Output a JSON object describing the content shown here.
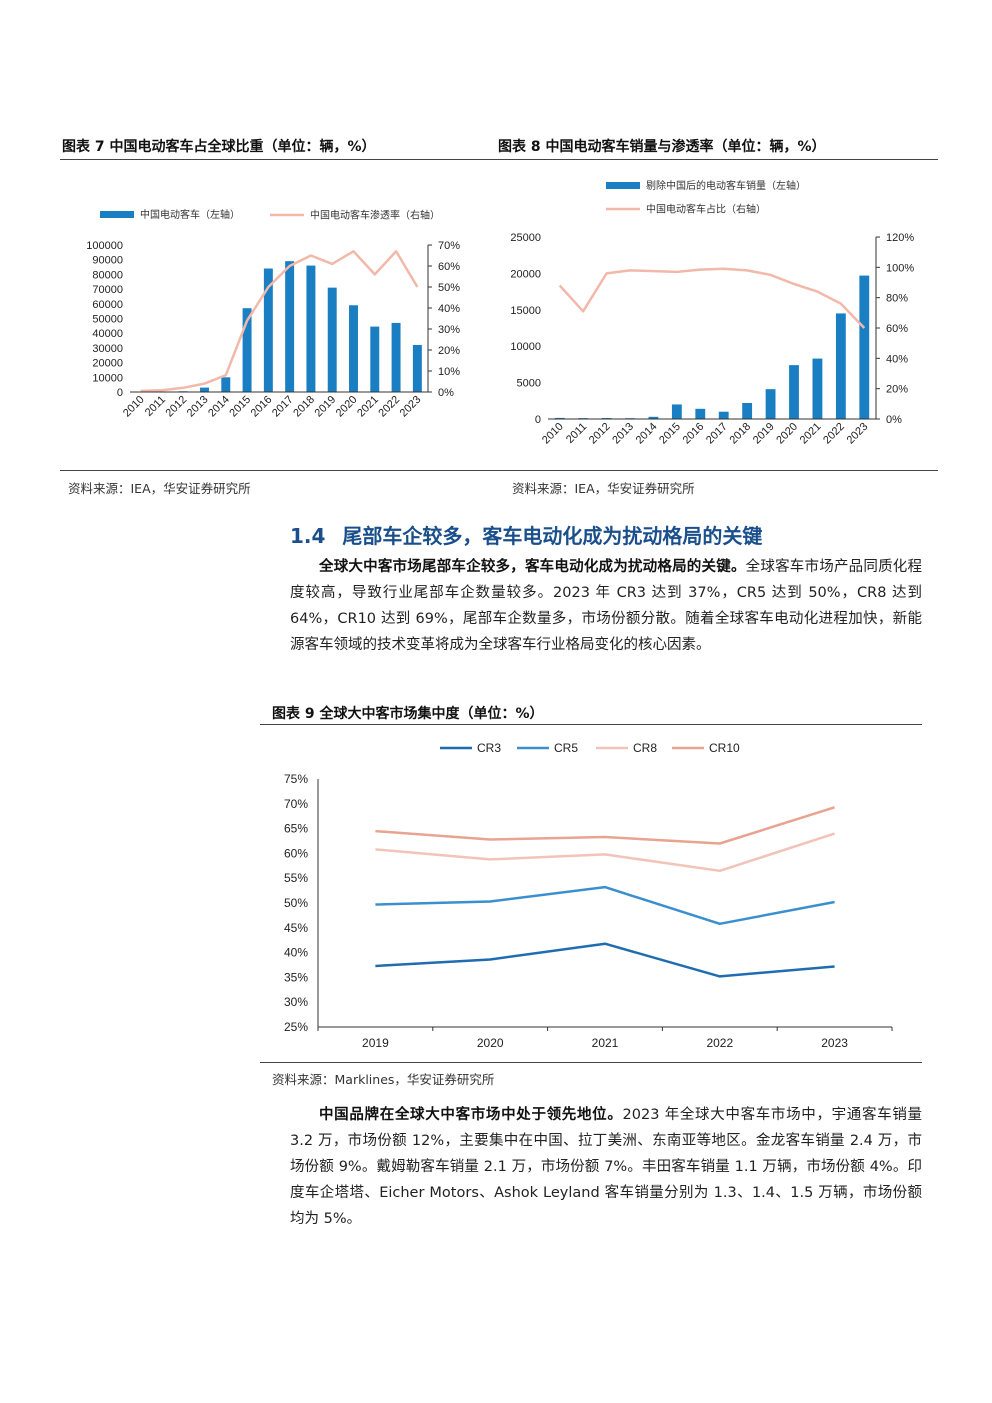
{
  "fig7": {
    "title": "图表 7 中国电动客车占全球比重（单位：辆，%）",
    "source": "资料来源：IEA，华安证券研究所",
    "chart_data": {
      "type": "bar",
      "categories": [
        "2010",
        "2011",
        "2012",
        "2013",
        "2014",
        "2015",
        "2016",
        "2017",
        "2018",
        "2019",
        "2020",
        "2021",
        "2022",
        "2023"
      ],
      "series": [
        {
          "name": "中国电动客车（左轴）",
          "type": "bar",
          "axis": "left",
          "color": "#1a7ec2",
          "values": [
            100,
            200,
            500,
            3000,
            10000,
            57000,
            84000,
            89000,
            86000,
            71000,
            59000,
            44500,
            47000,
            32000
          ]
        },
        {
          "name": "中国电动客车渗透率（右轴）",
          "type": "line",
          "axis": "right",
          "color": "#f2b8aa",
          "values": [
            0.5,
            0.8,
            2,
            4,
            8,
            34,
            50,
            60,
            65,
            61,
            67,
            56,
            67,
            50
          ]
        }
      ],
      "yticks_left": [
        "100000",
        "90000",
        "80000",
        "70000",
        "60000",
        "50000",
        "40000",
        "30000",
        "20000",
        "10000",
        "0"
      ],
      "yticks_right": [
        "70%",
        "60%",
        "50%",
        "40%",
        "30%",
        "20%",
        "10%",
        "0%"
      ],
      "ylim_left": [
        0,
        100000
      ],
      "ylim_right": [
        0,
        70
      ]
    }
  },
  "fig8": {
    "title": "图表 8 中国电动客车销量与渗透率（单位：辆，%）",
    "source": "资料来源：IEA，华安证券研究所",
    "chart_data": {
      "type": "bar",
      "categories": [
        "2010",
        "2011",
        "2012",
        "2013",
        "2014",
        "2015",
        "2016",
        "2017",
        "2018",
        "2019",
        "2020",
        "2021",
        "2022",
        "2023"
      ],
      "series": [
        {
          "name": "剔除中国后的电动客车销量（左轴）",
          "type": "bar",
          "axis": "left",
          "color": "#1a7ec2",
          "values": [
            150,
            120,
            130,
            110,
            300,
            2000,
            1400,
            1000,
            2200,
            4100,
            7400,
            8300,
            14500,
            19700
          ]
        },
        {
          "name": "中国电动客车占比（右轴）",
          "type": "line",
          "axis": "right",
          "color": "#f2b8aa",
          "values": [
            88,
            71,
            96,
            98,
            97.5,
            97,
            98.5,
            99,
            98,
            95,
            89,
            84,
            76,
            60
          ]
        }
      ],
      "yticks_left": [
        "25000",
        "20000",
        "15000",
        "10000",
        "5000",
        "0"
      ],
      "yticks_right": [
        "120%",
        "100%",
        "80%",
        "60%",
        "40%",
        "20%",
        "0%"
      ],
      "ylim_left": [
        0,
        25000
      ],
      "ylim_right": [
        0,
        120
      ]
    }
  },
  "section": {
    "number": "1.4",
    "title": "尾部车企较多，客车电动化成为扰动格局的关键"
  },
  "para1": {
    "lead": "全球大中客市场尾部车企较多，客车电动化成为扰动格局的关键。",
    "body": "全球客车市场产品同质化程度较高，导致行业尾部车企数量较多。2023 年 CR3 达到 37%，CR5 达到 50%，CR8 达到 64%，CR10 达到 69%，尾部车企数量多，市场份额分散。随着全球客车电动化进程加快，新能源客车领域的技术变革将成为全球客车行业格局变化的核心因素。"
  },
  "fig9": {
    "title": "图表 9 全球大中客市场集中度（单位：%）",
    "source": "资料来源：Marklines，华安证券研究所",
    "chart_data": {
      "type": "line",
      "categories": [
        "2019",
        "2020",
        "2021",
        "2022",
        "2023"
      ],
      "series": [
        {
          "name": "CR3",
          "color": "#1f6db0",
          "values": [
            37.3,
            38.6,
            41.8,
            35.2,
            37.2
          ]
        },
        {
          "name": "CR5",
          "color": "#3b8fcf",
          "values": [
            49.7,
            50.3,
            53.2,
            45.8,
            50.2
          ]
        },
        {
          "name": "CR8",
          "color": "#f2c3b8",
          "values": [
            60.8,
            58.8,
            59.8,
            56.5,
            64.0
          ]
        },
        {
          "name": "CR10",
          "color": "#e9a391",
          "values": [
            64.5,
            62.8,
            63.3,
            62.0,
            69.3
          ]
        }
      ],
      "yticks": [
        "75%",
        "70%",
        "65%",
        "60%",
        "55%",
        "50%",
        "45%",
        "40%",
        "35%",
        "30%",
        "25%"
      ],
      "ylim": [
        25,
        75
      ]
    }
  },
  "para2": {
    "lead": "中国品牌在全球大中客市场中处于领先地位。",
    "body": "2023 年全球大中客车市场中，宇通客车销量 3.2 万，市场份额 12%，主要集中在中国、拉丁美洲、东南亚等地区。金龙客车销量 2.4 万，市场份额 9%。戴姆勒客车销量 2.1 万，市场份额 7%。丰田客车销量 1.1 万辆，市场份额 4%。印度车企塔塔、Eicher Motors、Ashok Leyland 客车销量分别为 1.3、1.4、1.5 万辆，市场份额均为 5%。"
  }
}
